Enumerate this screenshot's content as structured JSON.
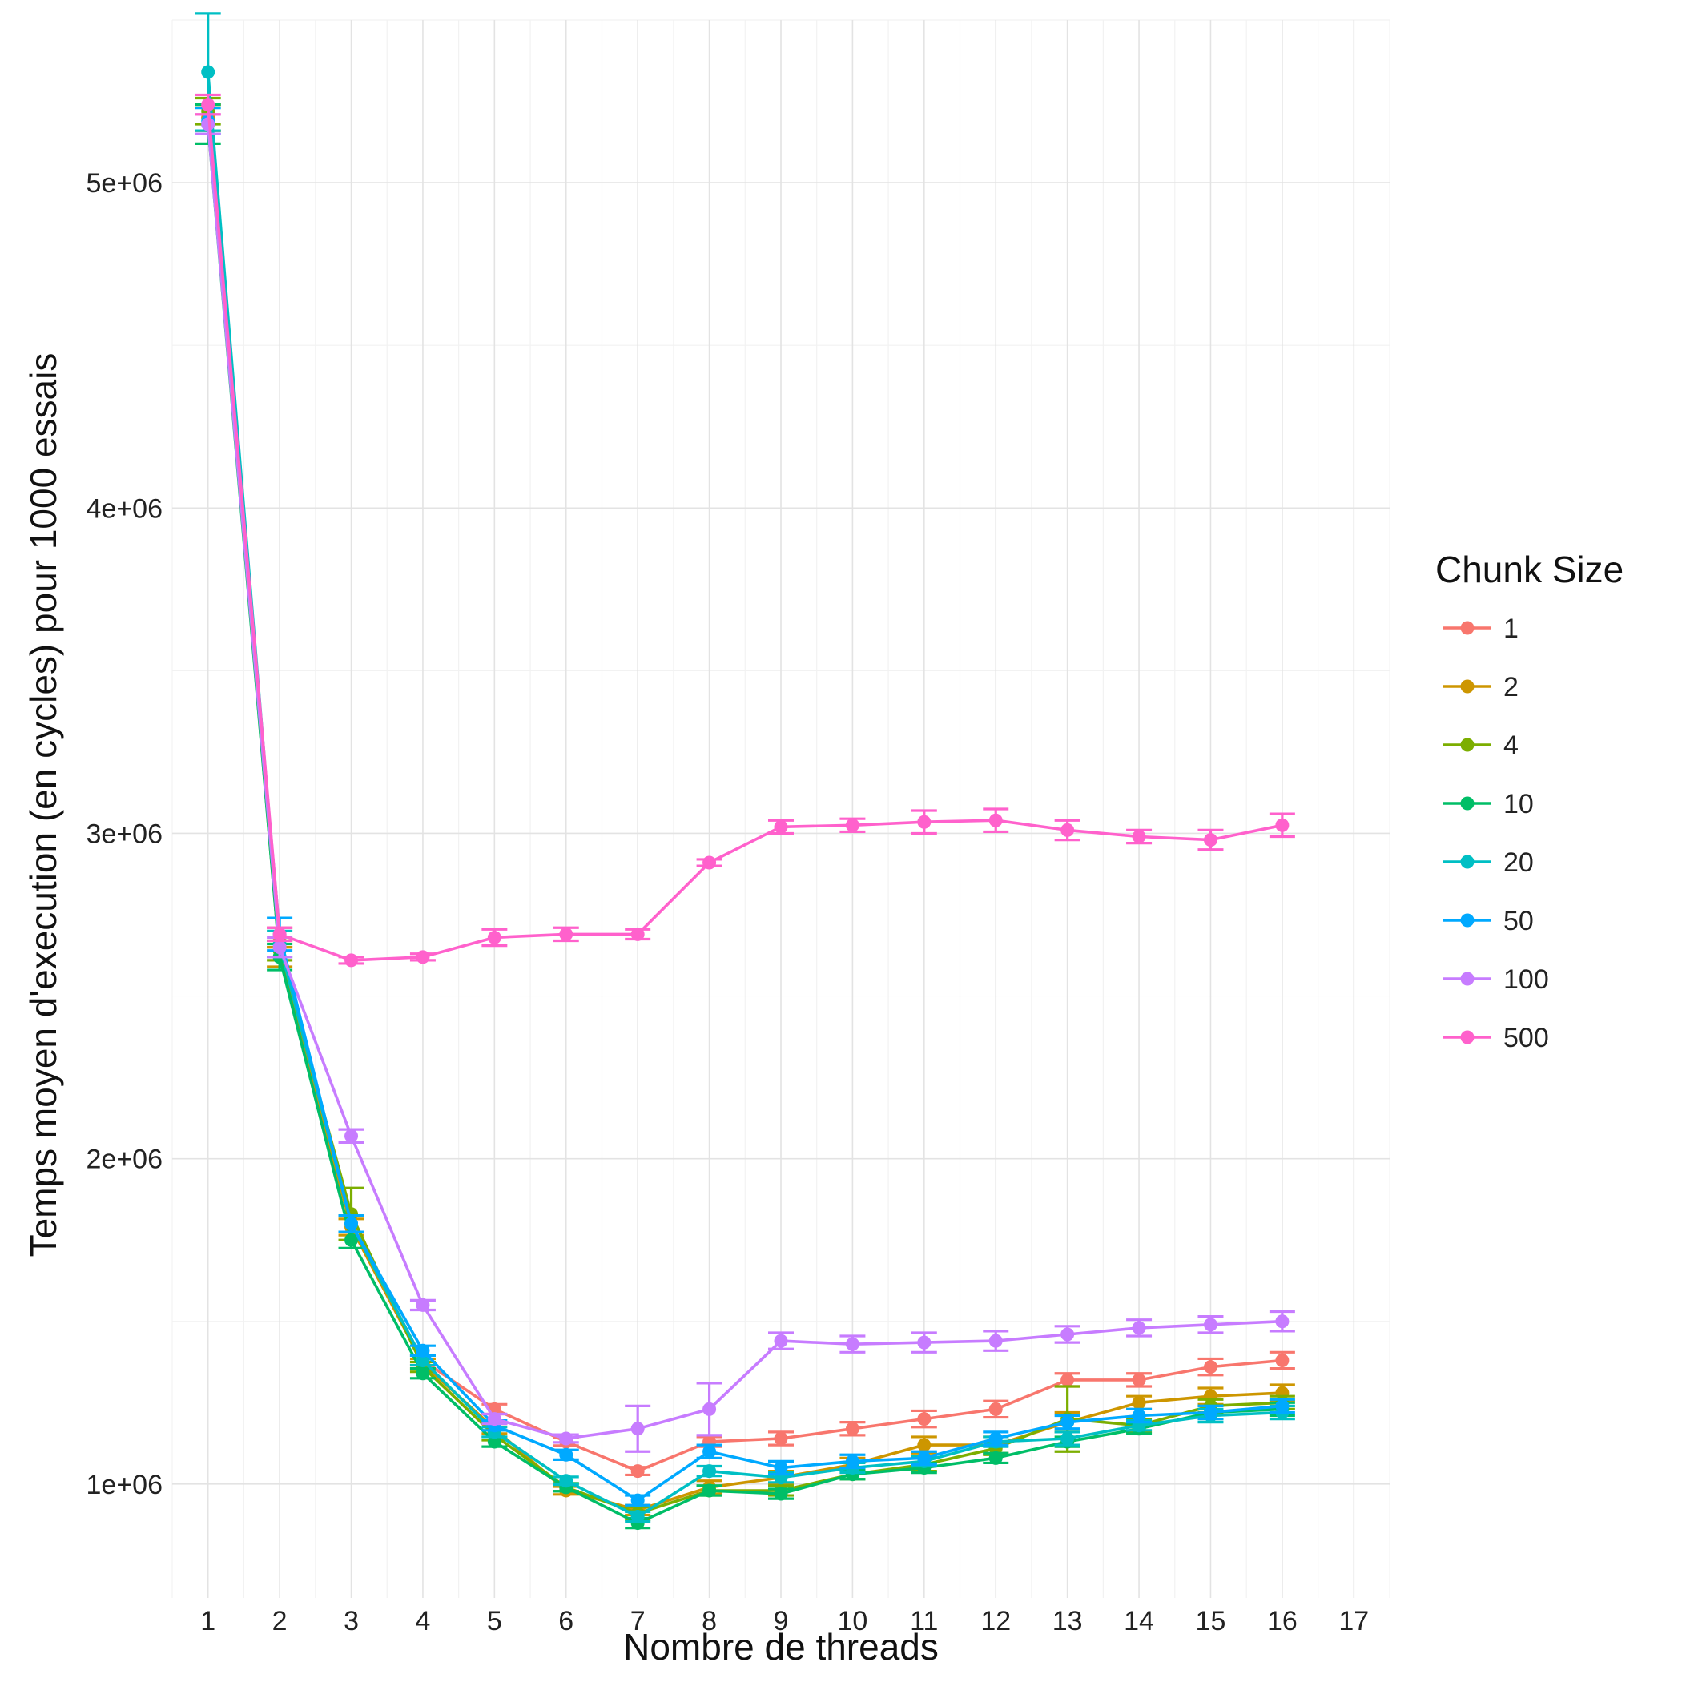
{
  "chart_data": {
    "type": "line",
    "title": "",
    "xlabel": "Nombre de threads",
    "ylabel": "Temps moyen d'execution (en cycles) pour 1000 essais",
    "xlim": [
      0.5,
      17.5
    ],
    "ylim": [
      650000,
      5500000
    ],
    "x_ticks": [
      1,
      2,
      3,
      4,
      5,
      6,
      7,
      8,
      9,
      10,
      11,
      12,
      13,
      14,
      15,
      16,
      17
    ],
    "x_tick_labels": [
      "1",
      "2",
      "3",
      "4",
      "5",
      "6",
      "7",
      "8",
      "9",
      "10",
      "11",
      "12",
      "13",
      "14",
      "15",
      "16",
      "17"
    ],
    "y_ticks": [
      1000000,
      2000000,
      3000000,
      4000000,
      5000000
    ],
    "y_tick_labels": [
      "1e+06",
      "2e+06",
      "3e+06",
      "4e+06",
      "5e+06"
    ],
    "y_minor_ticks": [
      1500000,
      2500000,
      3500000,
      4500000,
      5500000
    ],
    "grid": true,
    "legend": {
      "title": "Chunk Size",
      "position": "right"
    },
    "x": [
      1,
      2,
      3,
      4,
      5,
      6,
      7,
      8,
      9,
      10,
      11,
      12,
      13,
      14,
      15,
      16
    ],
    "series": [
      {
        "name": "1",
        "color": "#F8766D",
        "values": [
          5200000,
          2680000,
          1800000,
          1380000,
          1230000,
          1130000,
          1040000,
          1130000,
          1140000,
          1170000,
          1200000,
          1230000,
          1320000,
          1320000,
          1360000,
          1380000
        ],
        "errors": [
          40000,
          30000,
          25000,
          15000,
          15000,
          12000,
          12000,
          15000,
          20000,
          20000,
          25000,
          25000,
          20000,
          20000,
          25000,
          25000
        ]
      },
      {
        "name": "2",
        "color": "#CD9600",
        "values": [
          5200000,
          2620000,
          1790000,
          1370000,
          1170000,
          980000,
          920000,
          990000,
          1020000,
          1060000,
          1120000,
          1120000,
          1190000,
          1250000,
          1270000,
          1280000
        ],
        "errors": [
          40000,
          30000,
          25000,
          15000,
          15000,
          12000,
          15000,
          20000,
          20000,
          20000,
          25000,
          25000,
          30000,
          20000,
          25000,
          25000
        ]
      },
      {
        "name": "4",
        "color": "#7CAE00",
        "values": [
          5220000,
          2640000,
          1830000,
          1360000,
          1150000,
          990000,
          910000,
          980000,
          980000,
          1030000,
          1060000,
          1110000,
          1200000,
          1180000,
          1240000,
          1250000
        ],
        "errors": [
          40000,
          30000,
          80000,
          15000,
          15000,
          12000,
          20000,
          15000,
          15000,
          15000,
          20000,
          20000,
          100000,
          20000,
          20000,
          20000
        ]
      },
      {
        "name": "10",
        "color": "#00BE67",
        "values": [
          5180000,
          2620000,
          1750000,
          1340000,
          1130000,
          990000,
          880000,
          980000,
          970000,
          1030000,
          1050000,
          1080000,
          1130000,
          1170000,
          1220000,
          1230000
        ],
        "errors": [
          60000,
          40000,
          25000,
          15000,
          15000,
          12000,
          15000,
          15000,
          15000,
          15000,
          15000,
          15000,
          15000,
          15000,
          20000,
          20000
        ]
      },
      {
        "name": "20",
        "color": "#00BFC4",
        "values": [
          5340000,
          2660000,
          1800000,
          1380000,
          1160000,
          1010000,
          900000,
          1040000,
          1020000,
          1050000,
          1070000,
          1130000,
          1140000,
          1180000,
          1210000,
          1220000
        ],
        "errors": [
          180000,
          40000,
          25000,
          15000,
          15000,
          12000,
          15000,
          15000,
          15000,
          15000,
          15000,
          15000,
          20000,
          15000,
          20000,
          20000
        ]
      },
      {
        "name": "50",
        "color": "#00A9FF",
        "values": [
          5190000,
          2690000,
          1800000,
          1410000,
          1180000,
          1090000,
          950000,
          1100000,
          1050000,
          1070000,
          1080000,
          1140000,
          1190000,
          1210000,
          1220000,
          1240000
        ],
        "errors": [
          40000,
          50000,
          25000,
          15000,
          15000,
          15000,
          15000,
          20000,
          20000,
          20000,
          20000,
          20000,
          20000,
          20000,
          20000,
          20000
        ]
      },
      {
        "name": "100",
        "color": "#C77CFF",
        "values": [
          5180000,
          2650000,
          2070000,
          1550000,
          1200000,
          1140000,
          1170000,
          1230000,
          1440000,
          1430000,
          1435000,
          1440000,
          1460000,
          1480000,
          1490000,
          1500000
        ],
        "errors": [
          30000,
          30000,
          20000,
          15000,
          15000,
          12000,
          70000,
          80000,
          25000,
          25000,
          30000,
          30000,
          25000,
          25000,
          25000,
          30000
        ]
      },
      {
        "name": "500",
        "color": "#FF61CC",
        "values": [
          5240000,
          2690000,
          2610000,
          2620000,
          2680000,
          2690000,
          2690000,
          2910000,
          3020000,
          3025000,
          3035000,
          3040000,
          3010000,
          2990000,
          2980000,
          3025000
        ],
        "errors": [
          30000,
          20000,
          10000,
          10000,
          25000,
          20000,
          15000,
          10000,
          20000,
          20000,
          35000,
          35000,
          30000,
          20000,
          30000,
          35000
        ]
      }
    ]
  }
}
